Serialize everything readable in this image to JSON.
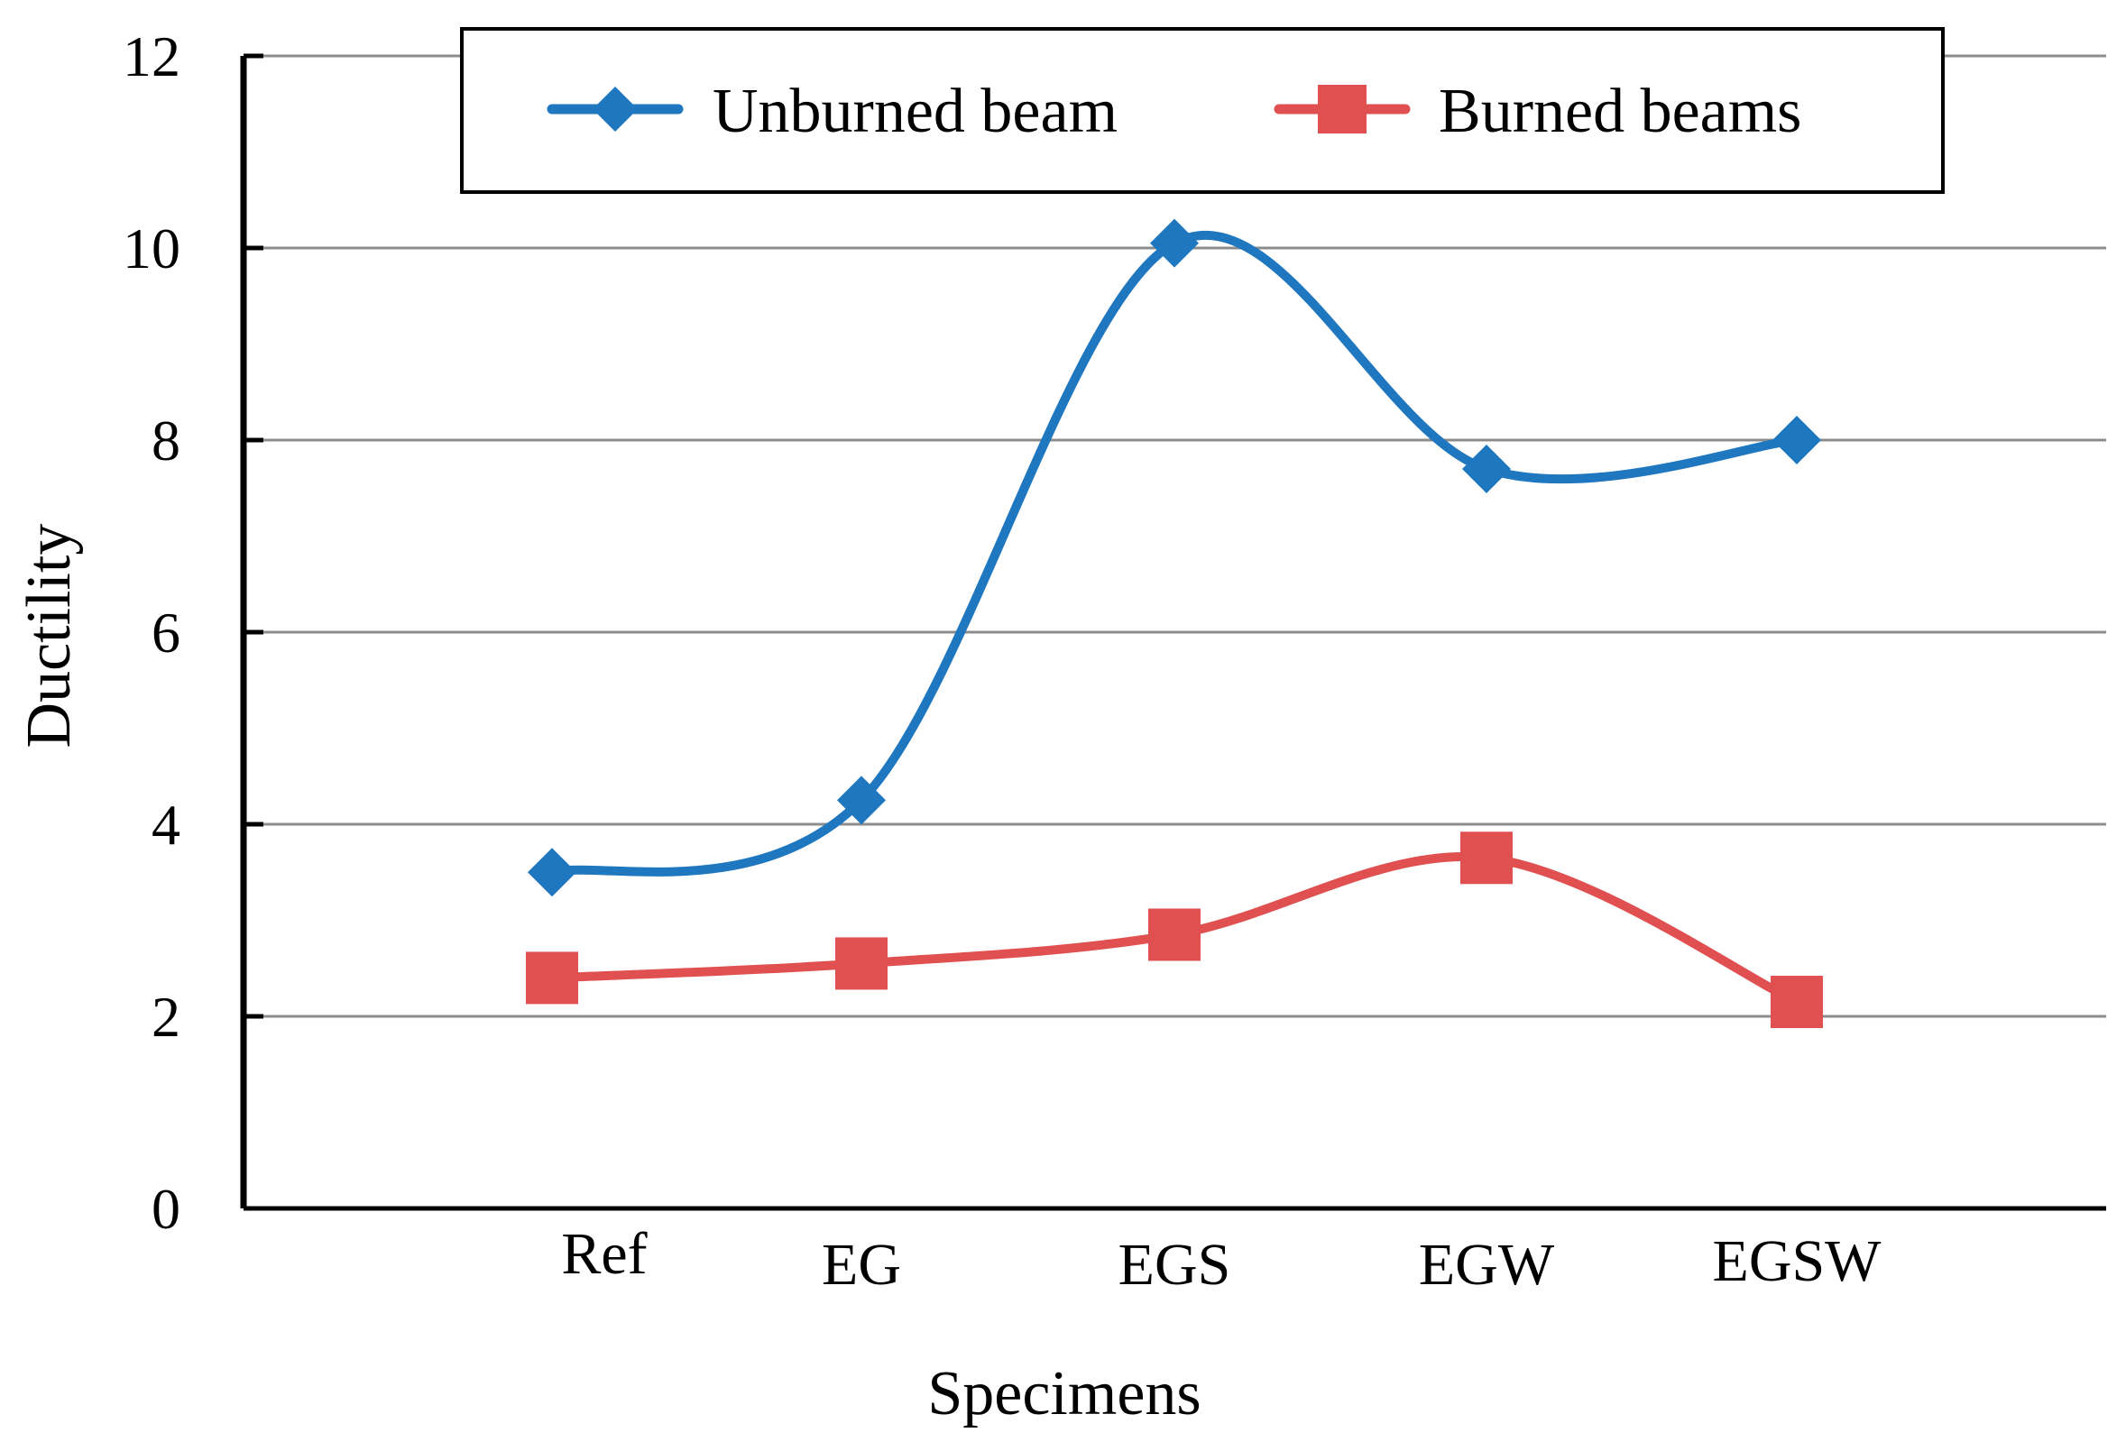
{
  "chart_data": {
    "type": "line",
    "smooth": true,
    "categories": [
      "Ref",
      "EG",
      "EGS",
      "EGW",
      "EGSW"
    ],
    "series": [
      {
        "name": "Unburned beam",
        "marker": "diamond",
        "color": "#1f77bf",
        "values": [
          3.5,
          4.25,
          10.05,
          7.7,
          8.0
        ]
      },
      {
        "name": "Burned beams",
        "marker": "square",
        "color": "#e05050",
        "values": [
          2.4,
          2.55,
          2.85,
          3.65,
          2.15
        ]
      }
    ],
    "xlabel": "Specimens",
    "ylabel": "Ductility",
    "ylim": [
      0,
      12
    ],
    "yticks": [
      "0",
      "2",
      "4",
      "6",
      "8",
      "10",
      "12"
    ],
    "grid": true,
    "legend_position": "top-center"
  }
}
